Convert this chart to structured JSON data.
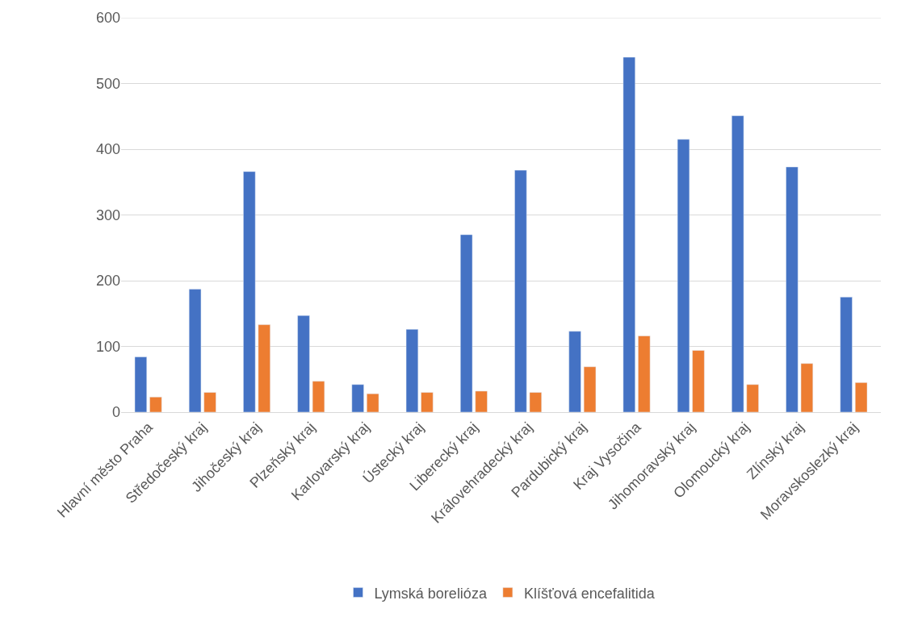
{
  "chart_data": {
    "type": "bar",
    "categories": [
      "Hlavní město Praha",
      "Středočeský kraj",
      "Jihočeský kraj",
      "Plzeňský kraj",
      "Karlovarský kraj",
      "Ústecký kraj",
      "Liberecký kraj",
      "Královehradecký kraj",
      "Pardubický kraj",
      "Kraj Vysočina",
      "Jihomoravský kraj",
      "Olomoucký kraj",
      "Zlínský kraj",
      "Moravskoslezký kraj"
    ],
    "series": [
      {
        "name": "Lymská borelióza",
        "color": "#4472c4",
        "values": [
          84,
          187,
          366,
          147,
          42,
          126,
          270,
          368,
          123,
          540,
          415,
          451,
          373,
          175
        ]
      },
      {
        "name": "Klíšťová encefalitida",
        "color": "#ed7d31",
        "values": [
          23,
          30,
          133,
          47,
          28,
          30,
          32,
          30,
          69,
          116,
          94,
          42,
          74,
          45
        ]
      }
    ],
    "ylim": [
      0,
      600
    ],
    "yticks": [
      0,
      100,
      200,
      300,
      400,
      500,
      600
    ],
    "grid": "y",
    "legend": "bottom"
  }
}
